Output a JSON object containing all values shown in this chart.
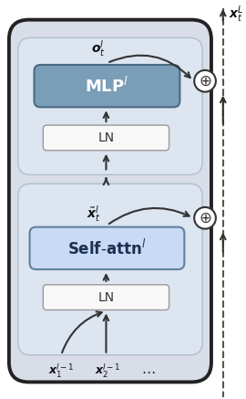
{
  "outer_box_color": "#d8dde8",
  "outer_box_edge": "#222222",
  "inner_box_top_color": "#dce5f0",
  "inner_box_bot_color": "#dce5f0",
  "inner_box_edge": "#b0bfcc",
  "mlp_box_color": "#7a9db8",
  "mlp_box_edge": "#4a6a80",
  "selfattn_box_color": "#c8daf5",
  "selfattn_box_edge": "#6080a0",
  "ln_box_color": "#f8f8f8",
  "ln_box_edge": "#999999",
  "plus_circle_color": "#ffffff",
  "plus_circle_edge": "#333333",
  "arrow_color": "#333333",
  "dashed_line_color": "#555555",
  "figsize": [
    2.7,
    4.37
  ],
  "dpi": 100
}
